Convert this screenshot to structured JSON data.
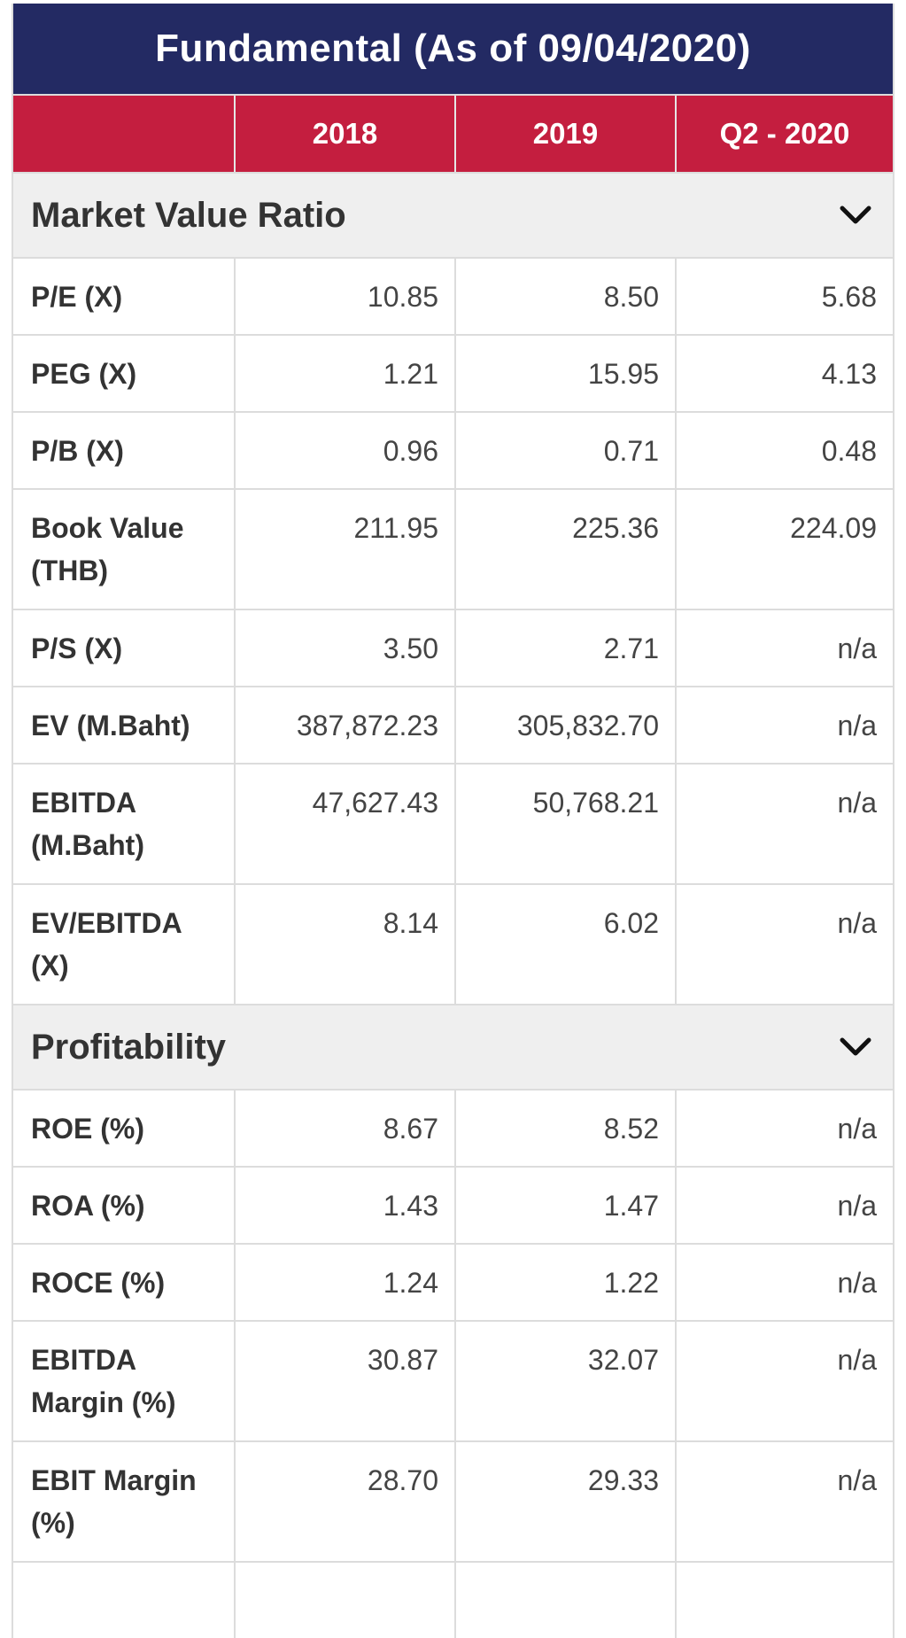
{
  "title": "Fundamental (As of 09/04/2020)",
  "columns": [
    "",
    "2018",
    "2019",
    "Q2 - 2020"
  ],
  "sections": [
    {
      "title": "Market Value Ratio",
      "icon": "chevron-down-icon",
      "rows": [
        {
          "label": "P/E (X)",
          "values": [
            "10.85",
            "8.50",
            "5.68"
          ]
        },
        {
          "label": "PEG (X)",
          "values": [
            "1.21",
            "15.95",
            "4.13"
          ]
        },
        {
          "label": "P/B (X)",
          "values": [
            "0.96",
            "0.71",
            "0.48"
          ]
        },
        {
          "label": "Book Value (THB)",
          "values": [
            "211.95",
            "225.36",
            "224.09"
          ]
        },
        {
          "label": "P/S (X)",
          "values": [
            "3.50",
            "2.71",
            "n/a"
          ]
        },
        {
          "label": "EV (M.Baht)",
          "values": [
            "387,872.23",
            "305,832.70",
            "n/a"
          ]
        },
        {
          "label": "EBITDA (M.Baht)",
          "values": [
            "47,627.43",
            "50,768.21",
            "n/a"
          ]
        },
        {
          "label": "EV/EBITDA (X)",
          "values": [
            "8.14",
            "6.02",
            "n/a"
          ]
        }
      ]
    },
    {
      "title": "Profitability",
      "icon": "chevron-down-icon",
      "rows": [
        {
          "label": "ROE (%)",
          "values": [
            "8.67",
            "8.52",
            "n/a"
          ]
        },
        {
          "label": "ROA (%)",
          "values": [
            "1.43",
            "1.47",
            "n/a"
          ]
        },
        {
          "label": "ROCE (%)",
          "values": [
            "1.24",
            "1.22",
            "n/a"
          ]
        },
        {
          "label": "EBITDA Margin (%)",
          "values": [
            "30.87",
            "32.07",
            "n/a"
          ]
        },
        {
          "label": "EBIT Margin (%)",
          "values": [
            "28.70",
            "29.33",
            "n/a"
          ]
        }
      ]
    }
  ],
  "colors": {
    "title_bg": "#232a63",
    "header_bg": "#c41e3f",
    "section_bg": "#efefef"
  }
}
